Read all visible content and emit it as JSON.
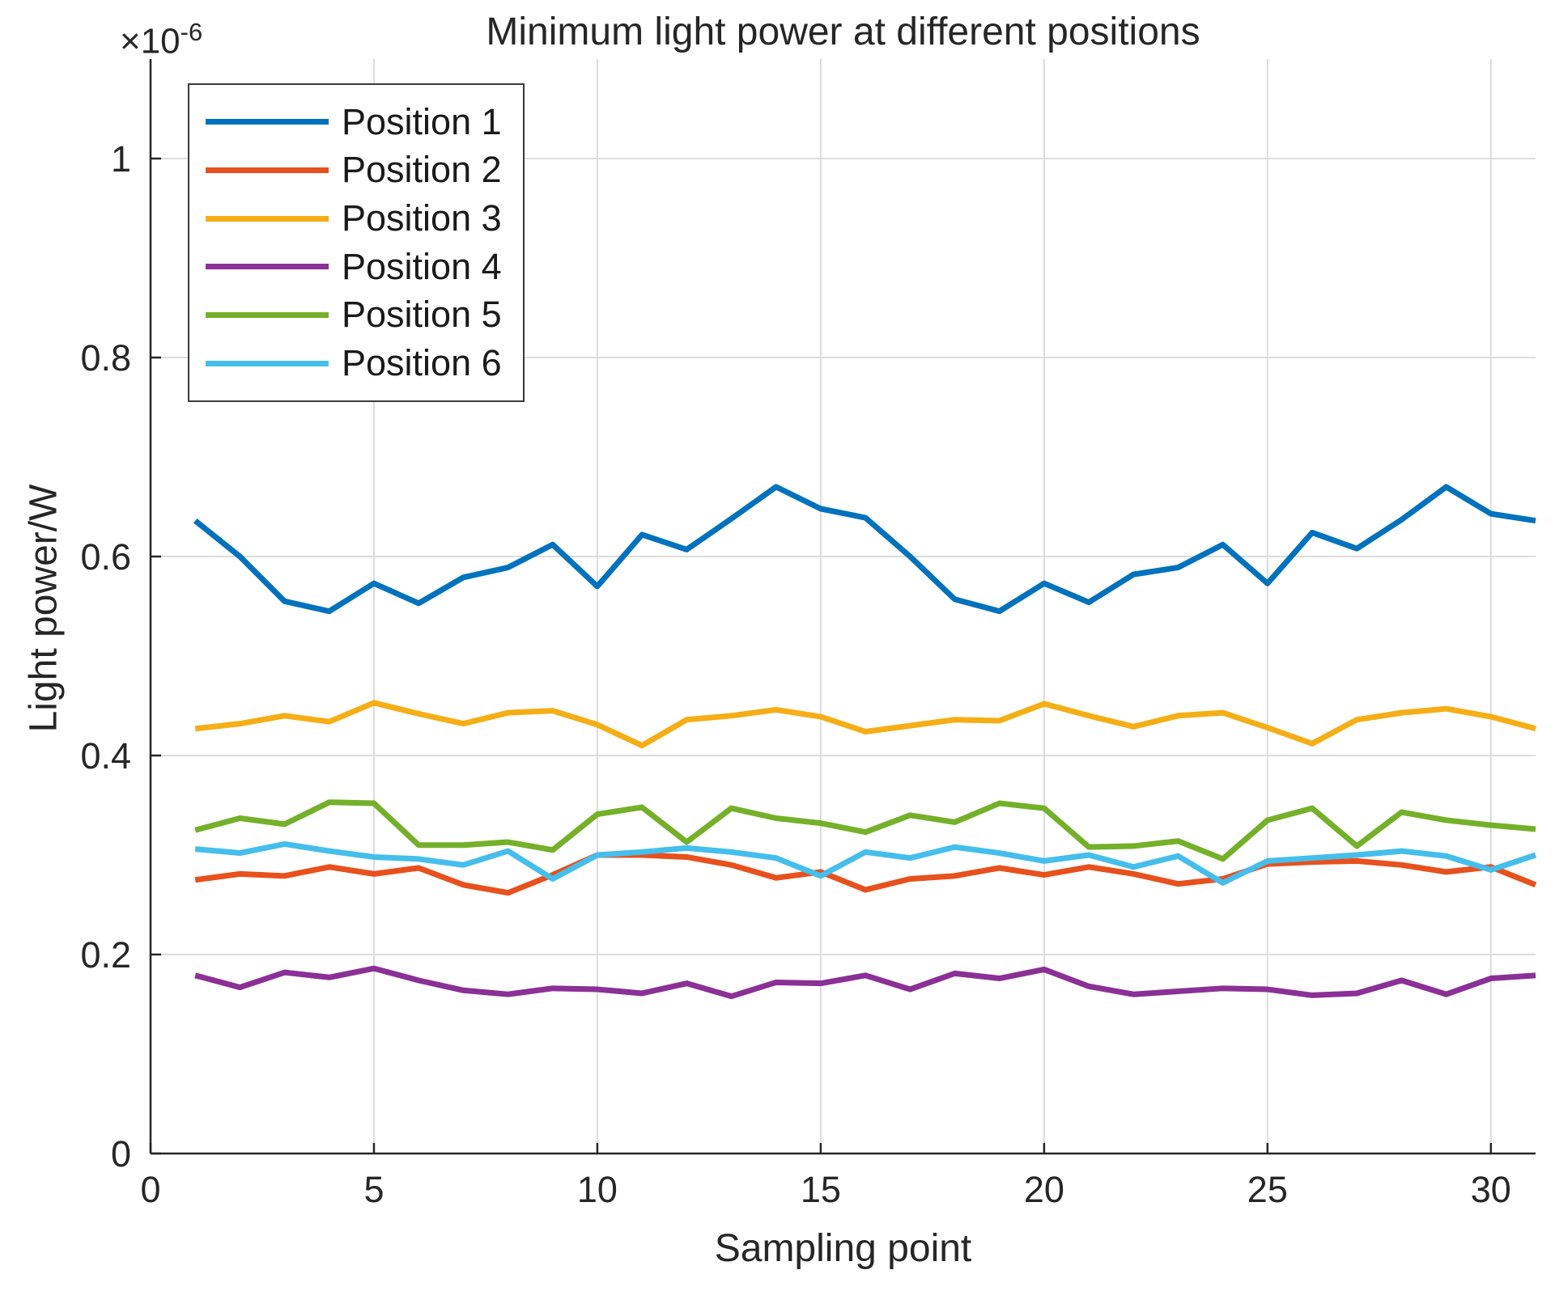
{
  "chart_data": {
    "type": "line",
    "title": "Minimum light power at different positions",
    "xlabel": "Sampling point",
    "ylabel": "Light power/W",
    "y_multiplier": {
      "text": "×10",
      "sup": "-6"
    },
    "value_unit_scale": "1e-6 W",
    "xlim": [
      0,
      31
    ],
    "ylim": [
      0,
      1.1
    ],
    "xticks": [
      0,
      5,
      10,
      15,
      20,
      25,
      30
    ],
    "yticks": [
      0,
      0.2,
      0.4,
      0.6,
      0.8,
      1
    ],
    "ytick_labels": [
      "0",
      "0.2",
      "0.4",
      "0.6",
      "0.8",
      "1"
    ],
    "grid": true,
    "legend_position": "top-left",
    "x": [
      1,
      2,
      3,
      4,
      5,
      6,
      7,
      8,
      9,
      10,
      11,
      12,
      13,
      14,
      15,
      16,
      17,
      18,
      19,
      20,
      21,
      22,
      23,
      24,
      25,
      26,
      27,
      28,
      29,
      30,
      31
    ],
    "series": [
      {
        "name": "Position 1",
        "color": "#0072BD",
        "values": [
          0.636,
          0.6,
          0.555,
          0.545,
          0.573,
          0.553,
          0.579,
          0.589,
          0.612,
          0.57,
          0.622,
          0.607,
          0.638,
          0.67,
          0.648,
          0.639,
          0.6,
          0.557,
          0.545,
          0.573,
          0.554,
          0.582,
          0.589,
          0.612,
          0.573,
          0.624,
          0.608,
          0.637,
          0.67,
          0.643,
          0.636
        ]
      },
      {
        "name": "Position 2",
        "color": "#E8501D",
        "values": [
          0.275,
          0.281,
          0.279,
          0.288,
          0.281,
          0.287,
          0.27,
          0.262,
          0.28,
          0.3,
          0.3,
          0.298,
          0.29,
          0.277,
          0.283,
          0.265,
          0.276,
          0.279,
          0.287,
          0.28,
          0.288,
          0.281,
          0.271,
          0.276,
          0.291,
          0.293,
          0.294,
          0.29,
          0.283,
          0.288,
          0.27
        ]
      },
      {
        "name": "Position 3",
        "color": "#F5AE16",
        "values": [
          0.427,
          0.432,
          0.44,
          0.434,
          0.453,
          0.442,
          0.432,
          0.443,
          0.445,
          0.431,
          0.41,
          0.436,
          0.44,
          0.446,
          0.439,
          0.424,
          0.43,
          0.436,
          0.435,
          0.452,
          0.44,
          0.429,
          0.44,
          0.443,
          0.428,
          0.412,
          0.436,
          0.443,
          0.447,
          0.439,
          0.427
        ]
      },
      {
        "name": "Position 4",
        "color": "#8A3096",
        "values": [
          0.179,
          0.167,
          0.182,
          0.177,
          0.186,
          0.174,
          0.164,
          0.16,
          0.166,
          0.165,
          0.161,
          0.171,
          0.158,
          0.172,
          0.171,
          0.179,
          0.165,
          0.181,
          0.176,
          0.185,
          0.168,
          0.16,
          0.163,
          0.166,
          0.165,
          0.159,
          0.161,
          0.174,
          0.16,
          0.176,
          0.179
        ]
      },
      {
        "name": "Position 5",
        "color": "#74B029",
        "values": [
          0.325,
          0.337,
          0.331,
          0.353,
          0.352,
          0.31,
          0.31,
          0.313,
          0.305,
          0.341,
          0.348,
          0.313,
          0.347,
          0.337,
          0.332,
          0.323,
          0.34,
          0.333,
          0.352,
          0.347,
          0.308,
          0.309,
          0.314,
          0.296,
          0.335,
          0.347,
          0.309,
          0.343,
          0.335,
          0.33,
          0.326
        ]
      },
      {
        "name": "Position 6",
        "color": "#45BEEC",
        "values": [
          0.306,
          0.302,
          0.311,
          0.304,
          0.298,
          0.296,
          0.29,
          0.304,
          0.276,
          0.3,
          0.303,
          0.307,
          0.303,
          0.297,
          0.279,
          0.303,
          0.297,
          0.308,
          0.302,
          0.294,
          0.3,
          0.288,
          0.299,
          0.272,
          0.294,
          0.297,
          0.3,
          0.304,
          0.299,
          0.285,
          0.3
        ]
      }
    ],
    "style": {
      "axis_color": "#262626",
      "grid_color": "#DCDCDC",
      "tick_label_color": "#262626",
      "line_width": 7,
      "tick_font_size": 45
    }
  }
}
